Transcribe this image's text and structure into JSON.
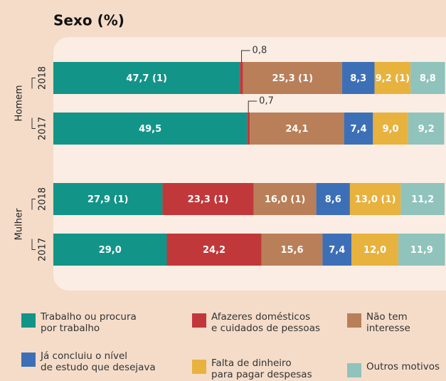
{
  "chart_data": {
    "type": "stacked-barh",
    "title": "Sexo (%)",
    "groups": [
      "Homem",
      "Mulher"
    ],
    "categories": [
      "2018",
      "2017",
      "2018",
      "2017"
    ],
    "xlim": [
      0,
      100
    ],
    "series": [
      {
        "name": "Trabalho ou procura\npor trabalho",
        "color": "#139488",
        "values": [
          47.7,
          49.5,
          27.9,
          29.0
        ],
        "value_labels": [
          "47,7 (1)",
          "49,5",
          "27,9 (1)",
          "29,0"
        ]
      },
      {
        "name": "Afazeres domésticos\ne cuidados de pessoas",
        "color": "#c1383b",
        "values": [
          0.8,
          0.7,
          23.3,
          24.2
        ],
        "value_labels": [
          "0,8",
          "0,7",
          "23,3 (1)",
          "24,2"
        ]
      },
      {
        "name": "Não tem\ninteresse",
        "color": "#b97f58",
        "values": [
          25.3,
          24.1,
          16.0,
          15.6
        ],
        "value_labels": [
          "25,3 (1)",
          "24,1",
          "16,0 (1)",
          "15,6"
        ]
      },
      {
        "name": "Já concluiu o nível\nde estudo que desejava",
        "color": "#3d6fb7",
        "values": [
          8.3,
          7.4,
          8.6,
          7.4
        ],
        "value_labels": [
          "8,3",
          "7,4",
          "8,6",
          "7,4"
        ]
      },
      {
        "name": "Falta de dinheiro\npara pagar despesas",
        "color": "#e8b23e",
        "values": [
          9.2,
          9.0,
          13.0,
          12.0
        ],
        "value_labels": [
          "9,2 (1)",
          "9,0",
          "13,0 (1)",
          "12,0"
        ]
      },
      {
        "name": "Outros motivos",
        "color": "#8fc3bc",
        "values": [
          8.8,
          9.2,
          11.2,
          11.9
        ],
        "value_labels": [
          "8,8",
          "9,2",
          "11,2",
          "11,9"
        ]
      }
    ]
  }
}
